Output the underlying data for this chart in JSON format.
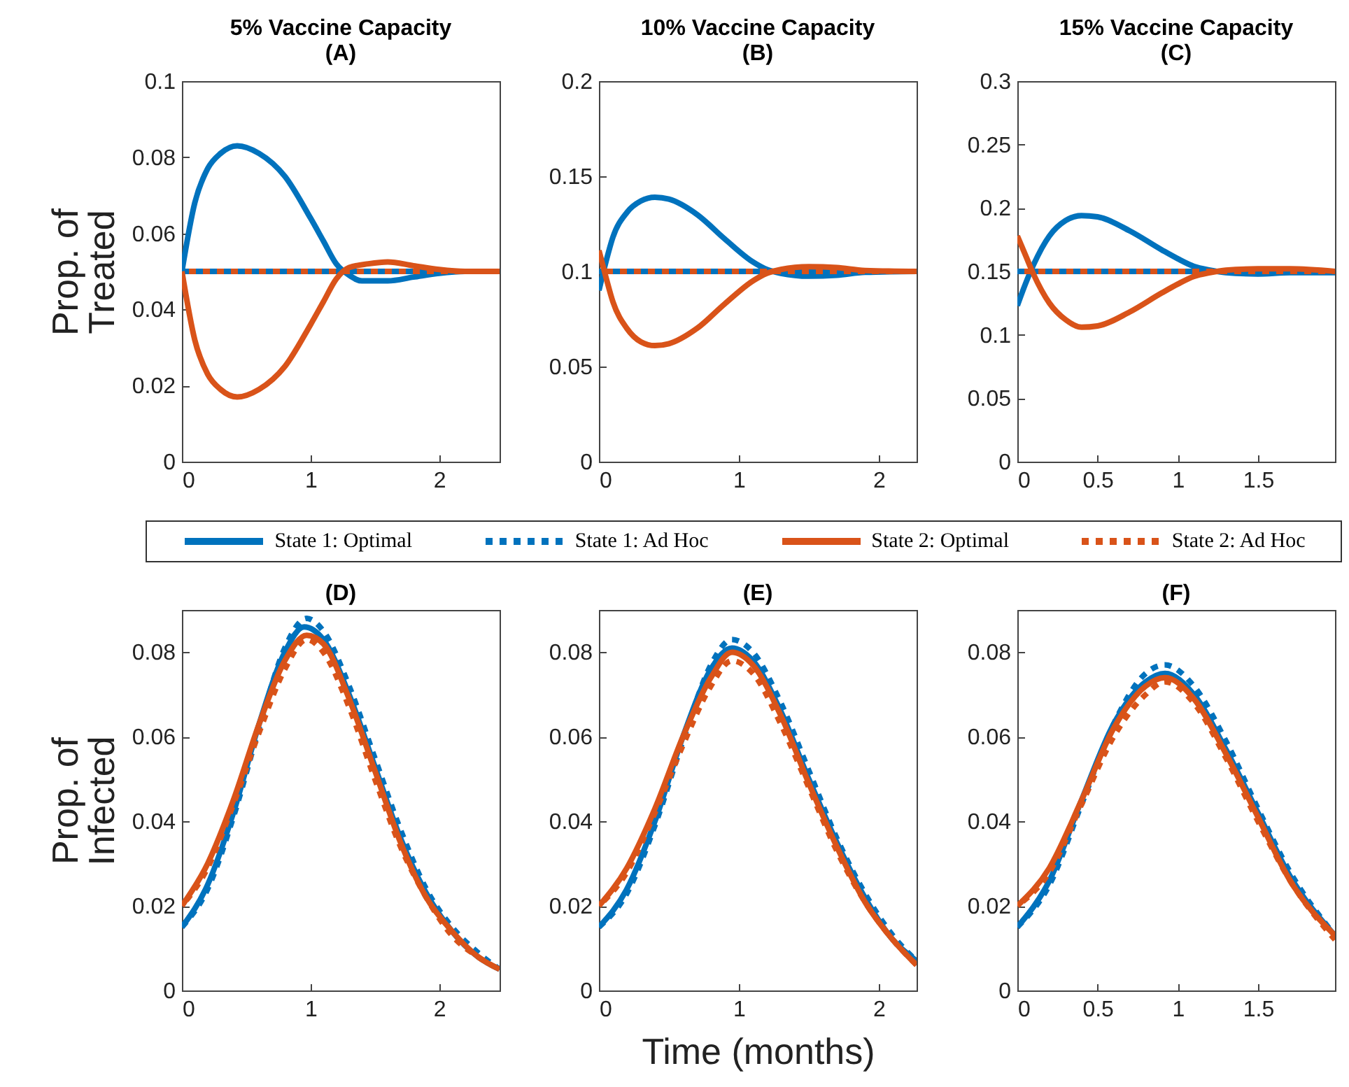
{
  "chart_data": [
    {
      "type": "line",
      "title": "5% Vaccine Capacity",
      "subtitle": "(A)",
      "ylabel": "Prop. of Treated",
      "xlim": [
        0,
        2.47
      ],
      "xticks": [
        0,
        1,
        2
      ],
      "ylim": [
        0,
        0.1
      ],
      "yticks": [
        0,
        0.02,
        0.04,
        0.06,
        0.08,
        0.1
      ],
      "legend": "bottom",
      "series": [
        {
          "name": "State 1: Optimal",
          "color": "#0072bd",
          "x": [
            0,
            0.1,
            0.2,
            0.3,
            0.43,
            0.6,
            0.8,
            1.0,
            1.1,
            1.2,
            1.3,
            1.4,
            1.6,
            1.8,
            2.0,
            2.2,
            2.47
          ],
          "values": [
            0.05,
            0.068,
            0.077,
            0.081,
            0.083,
            0.081,
            0.075,
            0.064,
            0.058,
            0.052,
            0.049,
            0.0475,
            0.0475,
            0.0485,
            0.0495,
            0.05,
            0.05
          ]
        },
        {
          "name": "State 1: Ad Hoc",
          "color": "#0072bd",
          "line_style": "dashed",
          "x": [
            0,
            2.47
          ],
          "values": [
            0.05,
            0.05
          ]
        },
        {
          "name": "State 2: Optimal",
          "color": "#d95319",
          "x": [
            0,
            0.1,
            0.2,
            0.3,
            0.43,
            0.6,
            0.8,
            1.0,
            1.1,
            1.2,
            1.3,
            1.45,
            1.6,
            1.8,
            2.0,
            2.2,
            2.47
          ],
          "values": [
            0.05,
            0.032,
            0.023,
            0.019,
            0.017,
            0.019,
            0.025,
            0.036,
            0.042,
            0.048,
            0.051,
            0.052,
            0.0525,
            0.0515,
            0.0505,
            0.05,
            0.05
          ]
        },
        {
          "name": "State 2: Ad Hoc",
          "color": "#d95319",
          "line_style": "dashed",
          "x": [
            0,
            2.47
          ],
          "values": [
            0.05,
            0.05
          ]
        }
      ]
    },
    {
      "type": "line",
      "title": "10% Vaccine Capacity",
      "subtitle": "(B)",
      "xlim": [
        0,
        2.27
      ],
      "xticks": [
        0,
        1,
        2
      ],
      "ylim": [
        0,
        0.2
      ],
      "yticks": [
        0,
        0.05,
        0.1,
        0.15,
        0.2
      ],
      "legend": "bottom",
      "series": [
        {
          "name": "State 1: Optimal",
          "color": "#0072bd",
          "x": [
            0,
            0.05,
            0.1,
            0.2,
            0.3,
            0.4,
            0.5,
            0.7,
            0.9,
            1.1,
            1.2,
            1.3,
            1.5,
            1.7,
            1.9,
            2.27
          ],
          "values": [
            0.09,
            0.105,
            0.118,
            0.131,
            0.137,
            0.139,
            0.138,
            0.13,
            0.117,
            0.105,
            0.101,
            0.099,
            0.0975,
            0.098,
            0.0995,
            0.1
          ]
        },
        {
          "name": "State 1: Ad Hoc",
          "color": "#0072bd",
          "line_style": "dashed",
          "x": [
            0,
            2.27
          ],
          "values": [
            0.1,
            0.1
          ]
        },
        {
          "name": "State 2: Optimal",
          "color": "#d95319",
          "x": [
            0,
            0.05,
            0.1,
            0.2,
            0.3,
            0.4,
            0.5,
            0.7,
            0.9,
            1.1,
            1.2,
            1.3,
            1.5,
            1.7,
            1.9,
            2.27
          ],
          "values": [
            0.111,
            0.097,
            0.084,
            0.07,
            0.063,
            0.061,
            0.062,
            0.07,
            0.083,
            0.095,
            0.099,
            0.101,
            0.1025,
            0.102,
            0.1005,
            0.1
          ]
        },
        {
          "name": "State 2: Ad Hoc",
          "color": "#d95319",
          "line_style": "dashed",
          "x": [
            0,
            2.27
          ],
          "values": [
            0.1,
            0.1
          ]
        }
      ]
    },
    {
      "type": "line",
      "title": "15% Vaccine Capacity",
      "subtitle": "(C)",
      "xlim": [
        0,
        1.98
      ],
      "xticks": [
        0,
        0.5,
        1,
        1.5
      ],
      "ylim": [
        0,
        0.3
      ],
      "yticks": [
        0,
        0.05,
        0.1,
        0.15,
        0.2,
        0.25,
        0.3
      ],
      "legend": "bottom",
      "series": [
        {
          "name": "State 1: Optimal",
          "color": "#0072bd",
          "x": [
            0,
            0.05,
            0.1,
            0.2,
            0.3,
            0.4,
            0.5,
            0.7,
            0.9,
            1.0,
            1.1,
            1.2,
            1.3,
            1.5,
            1.7,
            1.98
          ],
          "values": [
            0.123,
            0.14,
            0.155,
            0.178,
            0.19,
            0.194,
            0.193,
            0.182,
            0.167,
            0.16,
            0.154,
            0.151,
            0.149,
            0.148,
            0.149,
            0.149
          ]
        },
        {
          "name": "State 1: Ad Hoc",
          "color": "#0072bd",
          "line_style": "dashed",
          "x": [
            0,
            1.98
          ],
          "values": [
            0.15,
            0.15
          ]
        },
        {
          "name": "State 2: Optimal",
          "color": "#d95319",
          "x": [
            0,
            0.05,
            0.1,
            0.2,
            0.3,
            0.4,
            0.5,
            0.7,
            0.9,
            1.0,
            1.1,
            1.2,
            1.3,
            1.5,
            1.7,
            1.98
          ],
          "values": [
            0.178,
            0.163,
            0.148,
            0.125,
            0.112,
            0.106,
            0.107,
            0.118,
            0.133,
            0.14,
            0.146,
            0.149,
            0.151,
            0.152,
            0.152,
            0.15
          ]
        },
        {
          "name": "State 2: Ad Hoc",
          "color": "#d95319",
          "line_style": "dashed",
          "x": [
            0,
            1.98
          ],
          "values": [
            0.15,
            0.15
          ]
        }
      ]
    },
    {
      "type": "line",
      "title": "(D)",
      "ylabel": "Prop. of Infected",
      "xlim": [
        0,
        2.47
      ],
      "xticks": [
        0,
        1,
        2
      ],
      "ylim": [
        0,
        0.09
      ],
      "yticks": [
        0,
        0.02,
        0.04,
        0.06,
        0.08
      ],
      "series": [
        {
          "name": "State 1: Optimal",
          "color": "#0072bd",
          "x": [
            0,
            0.2,
            0.4,
            0.6,
            0.8,
            0.95,
            1.1,
            1.3,
            1.5,
            1.7,
            1.9,
            2.1,
            2.3,
            2.47
          ],
          "values": [
            0.015,
            0.025,
            0.042,
            0.063,
            0.08,
            0.086,
            0.083,
            0.07,
            0.053,
            0.036,
            0.023,
            0.014,
            0.008,
            0.005
          ]
        },
        {
          "name": "State 1: Ad Hoc",
          "color": "#0072bd",
          "line_style": "dashed",
          "x": [
            0,
            0.2,
            0.4,
            0.6,
            0.8,
            0.97,
            1.1,
            1.3,
            1.5,
            1.7,
            1.9,
            2.1,
            2.3,
            2.47
          ],
          "values": [
            0.015,
            0.024,
            0.041,
            0.062,
            0.081,
            0.088,
            0.085,
            0.072,
            0.055,
            0.038,
            0.024,
            0.015,
            0.009,
            0.005
          ]
        },
        {
          "name": "State 2: Optimal",
          "color": "#d95319",
          "x": [
            0,
            0.2,
            0.4,
            0.6,
            0.8,
            0.97,
            1.1,
            1.3,
            1.5,
            1.7,
            1.9,
            2.1,
            2.3,
            2.47
          ],
          "values": [
            0.02,
            0.03,
            0.045,
            0.063,
            0.078,
            0.084,
            0.082,
            0.069,
            0.052,
            0.035,
            0.022,
            0.014,
            0.008,
            0.005
          ]
        },
        {
          "name": "State 2: Ad Hoc",
          "color": "#d95319",
          "line_style": "dashed",
          "x": [
            0,
            0.2,
            0.4,
            0.6,
            0.8,
            0.97,
            1.1,
            1.3,
            1.5,
            1.7,
            1.9,
            2.1,
            2.3,
            2.47
          ],
          "values": [
            0.02,
            0.029,
            0.044,
            0.061,
            0.076,
            0.083,
            0.08,
            0.067,
            0.05,
            0.034,
            0.022,
            0.013,
            0.008,
            0.005
          ]
        }
      ]
    },
    {
      "type": "line",
      "title": "(E)",
      "xlabel": "Time (months)",
      "xlim": [
        0,
        2.27
      ],
      "xticks": [
        0,
        1,
        2
      ],
      "ylim": [
        0,
        0.09
      ],
      "yticks": [
        0,
        0.02,
        0.04,
        0.06,
        0.08
      ],
      "series": [
        {
          "name": "State 1: Optimal",
          "color": "#0072bd",
          "x": [
            0,
            0.2,
            0.4,
            0.6,
            0.8,
            0.95,
            1.1,
            1.3,
            1.5,
            1.7,
            1.9,
            2.1,
            2.27
          ],
          "values": [
            0.015,
            0.024,
            0.04,
            0.06,
            0.076,
            0.081,
            0.078,
            0.066,
            0.05,
            0.035,
            0.022,
            0.012,
            0.007
          ]
        },
        {
          "name": "State 1: Ad Hoc",
          "color": "#0072bd",
          "line_style": "dashed",
          "x": [
            0,
            0.2,
            0.4,
            0.6,
            0.8,
            0.95,
            1.1,
            1.3,
            1.5,
            1.7,
            1.9,
            2.1,
            2.27
          ],
          "values": [
            0.015,
            0.023,
            0.039,
            0.059,
            0.077,
            0.083,
            0.08,
            0.068,
            0.052,
            0.036,
            0.023,
            0.013,
            0.007
          ]
        },
        {
          "name": "State 2: Optimal",
          "color": "#d95319",
          "x": [
            0,
            0.2,
            0.4,
            0.6,
            0.8,
            0.95,
            1.1,
            1.3,
            1.5,
            1.7,
            1.9,
            2.1,
            2.27
          ],
          "values": [
            0.02,
            0.029,
            0.043,
            0.06,
            0.074,
            0.08,
            0.077,
            0.065,
            0.049,
            0.034,
            0.021,
            0.012,
            0.006
          ]
        },
        {
          "name": "State 2: Ad Hoc",
          "color": "#d95319",
          "line_style": "dashed",
          "x": [
            0,
            0.2,
            0.4,
            0.6,
            0.8,
            0.95,
            1.1,
            1.3,
            1.5,
            1.7,
            1.9,
            2.1,
            2.27
          ],
          "values": [
            0.02,
            0.028,
            0.042,
            0.058,
            0.072,
            0.078,
            0.075,
            0.063,
            0.048,
            0.033,
            0.021,
            0.012,
            0.006
          ]
        }
      ]
    },
    {
      "type": "line",
      "title": "(F)",
      "xlim": [
        0,
        1.98
      ],
      "xticks": [
        0,
        0.5,
        1,
        1.5
      ],
      "ylim": [
        0,
        0.09
      ],
      "yticks": [
        0,
        0.02,
        0.04,
        0.06,
        0.08
      ],
      "series": [
        {
          "name": "State 1: Optimal",
          "color": "#0072bd",
          "x": [
            0,
            0.2,
            0.4,
            0.6,
            0.8,
            0.92,
            1.1,
            1.3,
            1.5,
            1.7,
            1.98
          ],
          "values": [
            0.015,
            0.026,
            0.045,
            0.063,
            0.073,
            0.075,
            0.07,
            0.057,
            0.042,
            0.027,
            0.013
          ]
        },
        {
          "name": "State 1: Ad Hoc",
          "color": "#0072bd",
          "line_style": "dashed",
          "x": [
            0,
            0.2,
            0.4,
            0.6,
            0.8,
            0.92,
            1.1,
            1.3,
            1.5,
            1.7,
            1.98
          ],
          "values": [
            0.015,
            0.025,
            0.044,
            0.063,
            0.075,
            0.077,
            0.072,
            0.059,
            0.043,
            0.028,
            0.013
          ]
        },
        {
          "name": "State 2: Optimal",
          "color": "#d95319",
          "x": [
            0,
            0.2,
            0.4,
            0.6,
            0.8,
            0.92,
            1.1,
            1.3,
            1.5,
            1.7,
            1.98
          ],
          "values": [
            0.02,
            0.029,
            0.045,
            0.062,
            0.072,
            0.074,
            0.069,
            0.056,
            0.041,
            0.026,
            0.013
          ]
        },
        {
          "name": "State 2: Ad Hoc",
          "color": "#d95319",
          "line_style": "dashed",
          "x": [
            0,
            0.2,
            0.4,
            0.6,
            0.8,
            0.92,
            1.1,
            1.3,
            1.5,
            1.7,
            1.98
          ],
          "values": [
            0.02,
            0.028,
            0.044,
            0.06,
            0.07,
            0.073,
            0.068,
            0.055,
            0.04,
            0.026,
            0.012
          ]
        }
      ]
    }
  ]
}
